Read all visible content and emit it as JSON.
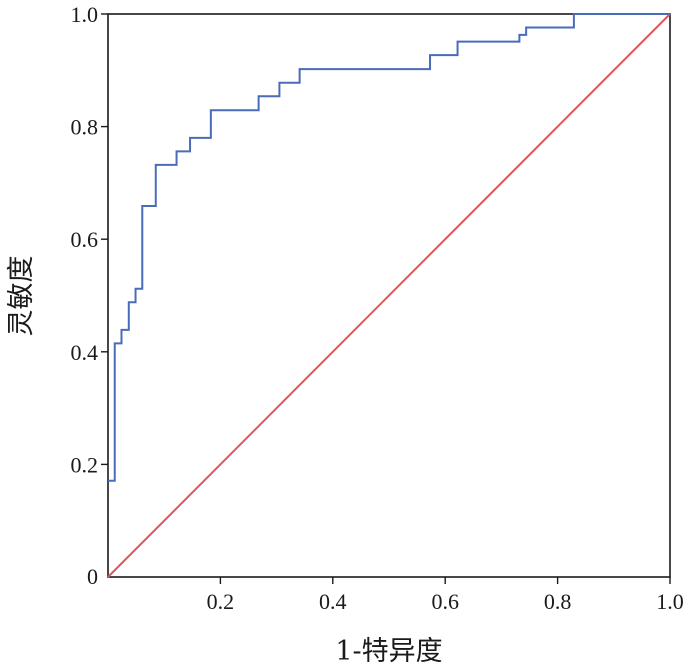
{
  "chart_data": {
    "type": "line",
    "xlabel": "1-特异度",
    "ylabel": "灵敏度",
    "xlim": [
      0,
      1
    ],
    "ylim": [
      0,
      1
    ],
    "x_ticks": [
      "0.2",
      "0.4",
      "0.6",
      "0.8",
      "1.0"
    ],
    "y_ticks": [
      "0.2",
      "0.4",
      "0.6",
      "0.8",
      "1.0"
    ],
    "origin_label": "0",
    "grid": false,
    "legend": "none",
    "series": [
      {
        "color": "#4a6cb8",
        "step": true,
        "x": [
          0,
          0.012,
          0.012,
          0.024,
          0.024,
          0.037,
          0.037,
          0.049,
          0.049,
          0.061,
          0.061,
          0.085,
          0.085,
          0.122,
          0.122,
          0.146,
          0.146,
          0.183,
          0.183,
          0.268,
          0.268,
          0.305,
          0.305,
          0.341,
          0.341,
          0.573,
          0.573,
          0.622,
          0.622,
          0.732,
          0.732,
          0.744,
          0.744,
          0.829,
          0.829,
          1.0
        ],
        "y": [
          0.171,
          0.171,
          0.415,
          0.415,
          0.439,
          0.439,
          0.488,
          0.488,
          0.512,
          0.512,
          0.659,
          0.659,
          0.732,
          0.732,
          0.756,
          0.756,
          0.78,
          0.78,
          0.829,
          0.829,
          0.854,
          0.854,
          0.878,
          0.878,
          0.902,
          0.902,
          0.927,
          0.927,
          0.951,
          0.951,
          0.963,
          0.963,
          0.976,
          0.976,
          1.0,
          1.0
        ]
      },
      {
        "color": "#e0555a",
        "x": [
          0,
          1
        ],
        "y": [
          0,
          1
        ]
      }
    ]
  }
}
